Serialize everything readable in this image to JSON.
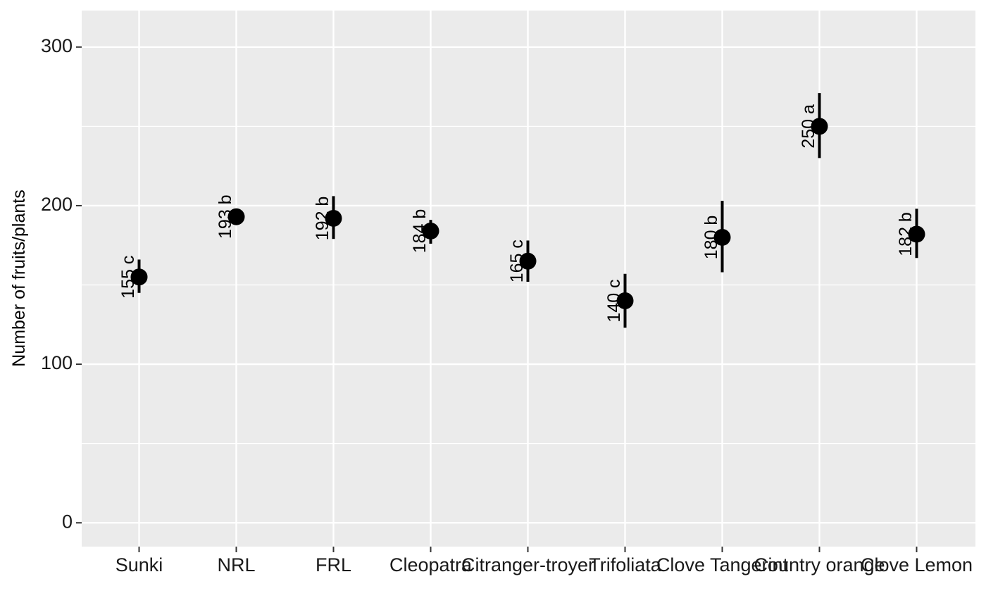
{
  "chart_data": {
    "type": "scatter",
    "title": "",
    "xlabel": "",
    "ylabel": "Number of fruits/plants",
    "ylim": [
      -15,
      323
    ],
    "yticks": [
      0,
      100,
      200,
      300
    ],
    "grid": true,
    "categories": [
      "Sunki",
      "NRL",
      "FRL",
      "Cleopatra",
      "Citranger-troyer",
      "Trifoliata",
      "Clove Tangerint",
      "Country orange",
      "Clove Lemon"
    ],
    "points": [
      {
        "category": "Sunki",
        "y": 155,
        "ymin": 145,
        "ymax": 166,
        "label": "155 c"
      },
      {
        "category": "NRL",
        "y": 193,
        "ymin": 192,
        "ymax": 195,
        "label": "193 b"
      },
      {
        "category": "FRL",
        "y": 192,
        "ymin": 179,
        "ymax": 206,
        "label": "192 b"
      },
      {
        "category": "Cleopatra",
        "y": 184,
        "ymin": 176,
        "ymax": 191,
        "label": "184 b"
      },
      {
        "category": "Citranger-troyer",
        "y": 165,
        "ymin": 152,
        "ymax": 178,
        "label": "165 c"
      },
      {
        "category": "Trifoliata",
        "y": 140,
        "ymin": 123,
        "ymax": 157,
        "label": "140 c"
      },
      {
        "category": "Clove Tangerint",
        "y": 180,
        "ymin": 158,
        "ymax": 203,
        "label": "180 b"
      },
      {
        "category": "Country orange",
        "y": 250,
        "ymin": 230,
        "ymax": 271,
        "label": "250 a"
      },
      {
        "category": "Clove Lemon",
        "y": 182,
        "ymin": 167,
        "ymax": 198,
        "label": "182 b"
      }
    ],
    "colors": {
      "panel": "#ebebeb",
      "grid": "#ffffff",
      "point": "#000000",
      "text": "#1a1a1a",
      "tick": "#333333"
    }
  }
}
